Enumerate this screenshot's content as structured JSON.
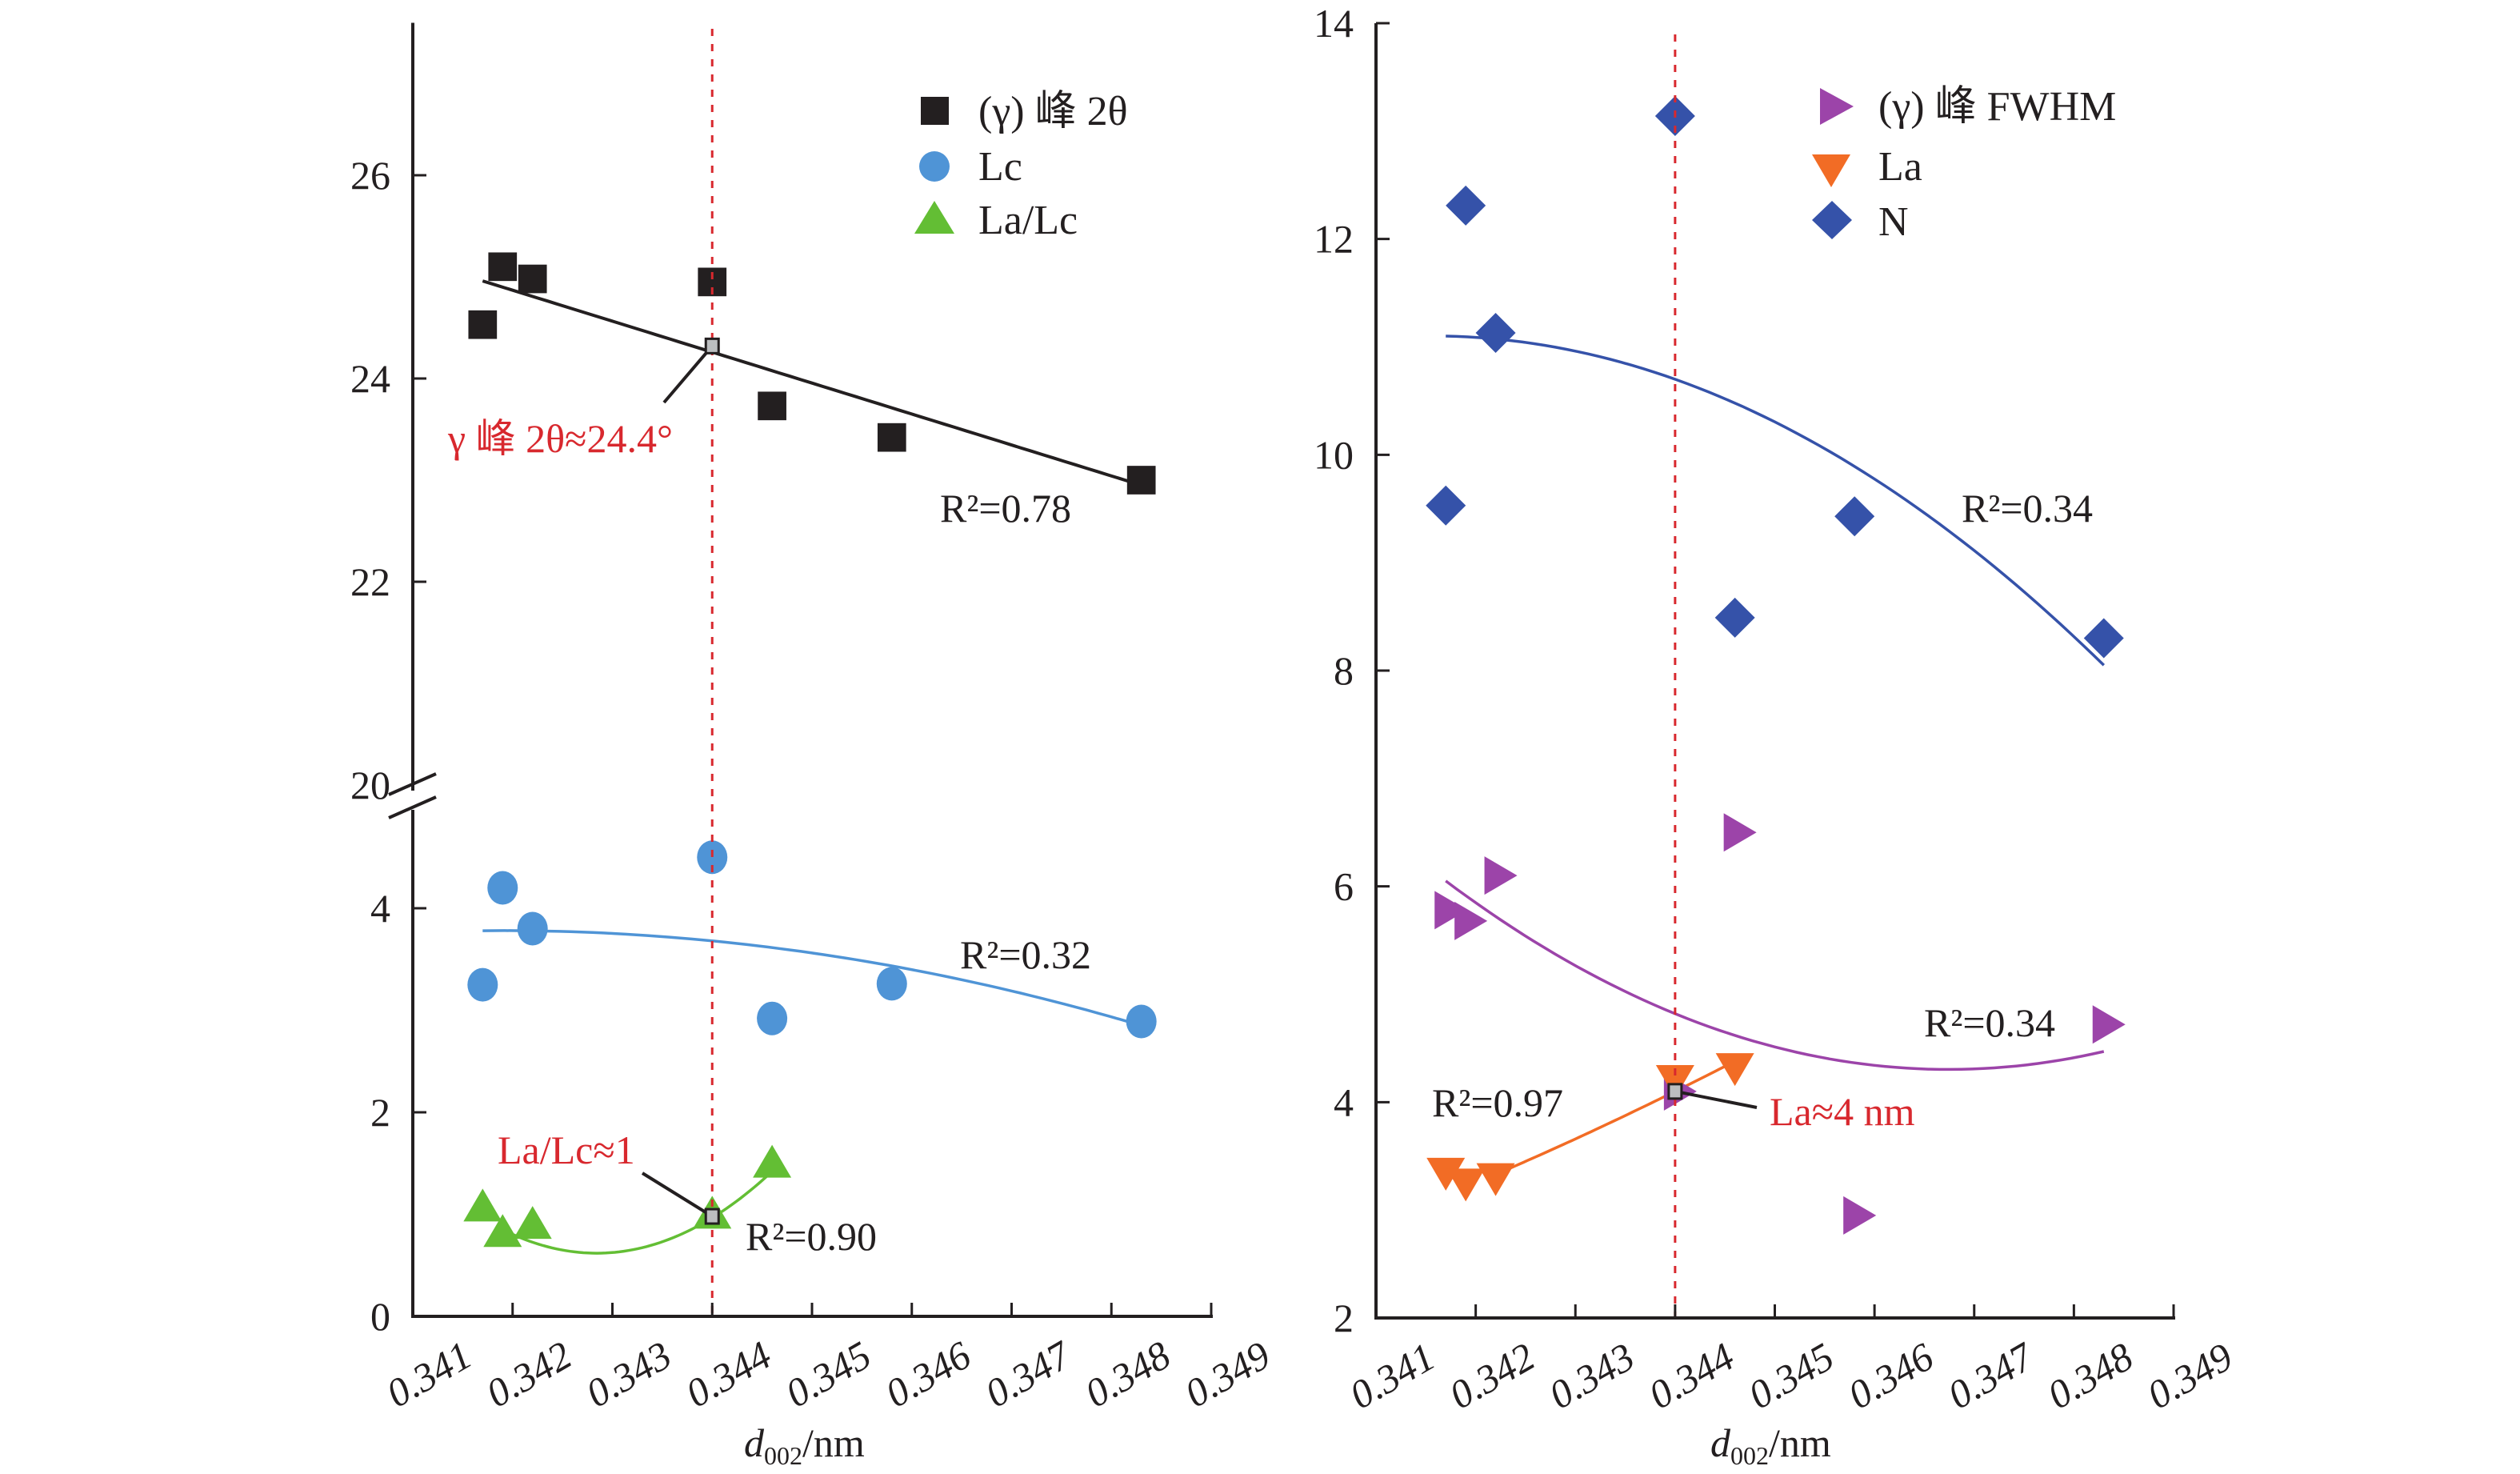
{
  "chart_data": [
    {
      "id": "left",
      "type": "scatter",
      "title": "",
      "xlabel": "d002/nm",
      "xlabel_main": "d",
      "xlabel_sub": "002",
      "xlabel_unit": "/nm",
      "xlim": [
        0.341,
        0.349
      ],
      "xticks": [
        0.341,
        0.342,
        0.343,
        0.344,
        0.345,
        0.346,
        0.347,
        0.348,
        0.349
      ],
      "xtick_labels": [
        "0.341",
        "0.342",
        "0.343",
        "0.344",
        "0.345",
        "0.346",
        "0.347",
        "0.348",
        "0.349"
      ],
      "y_axis_broken": true,
      "ylim_lower": [
        0,
        4.9
      ],
      "ylim_upper": [
        20,
        27.5
      ],
      "yticks_lower": [
        0,
        2,
        4
      ],
      "ytick_labels_lower": [
        "0",
        "2",
        "4"
      ],
      "yticks_upper": [
        20,
        22,
        24,
        26
      ],
      "ytick_labels_upper": [
        "20",
        "22",
        "24",
        "26"
      ],
      "grid": false,
      "legend_position": "top-right",
      "reference_line_x": 0.344,
      "series": [
        {
          "name": "(γ) 峰 2θ",
          "marker": "square",
          "color": "#231f20",
          "segment": "upper",
          "x": [
            0.3417,
            0.3419,
            0.3422,
            0.344,
            0.3446,
            0.3458,
            0.3483
          ],
          "y": [
            24.53,
            25.1,
            24.98,
            24.95,
            23.73,
            23.42,
            23.0
          ],
          "fit": {
            "type": "linear",
            "color": "#231f20",
            "points": [
              [
                0.3417,
                24.96
              ],
              [
                0.3483,
                22.95
              ]
            ],
            "r2_label": "R²=0.78",
            "r2_value": 0.78
          }
        },
        {
          "name": "Lc",
          "marker": "circle",
          "color": "#4f94d6",
          "segment": "lower",
          "x": [
            0.3417,
            0.3419,
            0.3422,
            0.344,
            0.3446,
            0.3458,
            0.3483
          ],
          "y": [
            3.25,
            4.2,
            3.8,
            4.5,
            2.92,
            3.26,
            2.89
          ],
          "fit": {
            "type": "quadratic",
            "color": "#4f94d6",
            "points": [
              [
                0.3417,
                3.78
              ],
              [
                0.344,
                3.68
              ],
              [
                0.3483,
                2.85
              ]
            ],
            "r2_label": "R²=0.32",
            "r2_value": 0.32
          }
        },
        {
          "name": "La/Lc",
          "marker": "triangle-up",
          "color": "#63be34",
          "segment": "lower",
          "x": [
            0.3417,
            0.3419,
            0.3422,
            0.344,
            0.3446
          ],
          "y": [
            1.04,
            0.79,
            0.87,
            0.97,
            1.47
          ],
          "fit": {
            "type": "quadratic",
            "color": "#63be34",
            "points": [
              [
                0.3419,
                0.85
              ],
              [
                0.3429,
                0.62
              ],
              [
                0.3446,
                1.42
              ]
            ],
            "r2_label": "R²=0.90",
            "r2_value": 0.9
          }
        }
      ],
      "annotations": [
        {
          "text": "γ 峰 2θ≈24.4°",
          "color": "#d8282e",
          "point": [
            0.344,
            24.32
          ],
          "segment": "upper"
        },
        {
          "text": "La/Lc≈1",
          "color": "#d8282e",
          "point": [
            0.344,
            0.98
          ],
          "segment": "lower"
        }
      ]
    },
    {
      "id": "right",
      "type": "scatter",
      "title": "",
      "xlabel": "d002/nm",
      "xlabel_main": "d",
      "xlabel_sub": "002",
      "xlabel_unit": "/nm",
      "xlim": [
        0.341,
        0.349
      ],
      "xticks": [
        0.341,
        0.342,
        0.343,
        0.344,
        0.345,
        0.346,
        0.347,
        0.348,
        0.349
      ],
      "xtick_labels": [
        "0.341",
        "0.342",
        "0.343",
        "0.344",
        "0.345",
        "0.346",
        "0.347",
        "0.348",
        "0.349"
      ],
      "ylim": [
        2,
        14
      ],
      "yticks": [
        2,
        4,
        6,
        8,
        10,
        12,
        14
      ],
      "ytick_labels": [
        "2",
        "4",
        "6",
        "8",
        "10",
        "12",
        "14"
      ],
      "grid": false,
      "legend_position": "top-right",
      "reference_line_x": 0.344,
      "series": [
        {
          "name": "(γ) 峰 FWHM",
          "marker": "triangle-right",
          "color": "#9c44a9",
          "x": [
            0.3417,
            0.3419,
            0.3422,
            0.344,
            0.3446,
            0.3458,
            0.3483
          ],
          "y": [
            5.78,
            5.68,
            6.1,
            4.1,
            6.5,
            2.95,
            4.72
          ],
          "fit": {
            "type": "quadratic",
            "color": "#9c44a9",
            "points": [
              [
                0.3417,
                6.05
              ],
              [
                0.344,
                4.82
              ],
              [
                0.3483,
                4.47
              ]
            ],
            "r2_label": "R²=0.34",
            "r2_value": 0.34
          }
        },
        {
          "name": "La",
          "marker": "triangle-down",
          "color": "#f26c25",
          "x": [
            0.3417,
            0.3419,
            0.3422,
            0.344,
            0.3446
          ],
          "y": [
            3.38,
            3.28,
            3.33,
            4.24,
            4.35
          ],
          "fit": {
            "type": "quadratic",
            "color": "#f26c25",
            "points": [
              [
                0.3422,
                3.33
              ],
              [
                0.344,
                4.1
              ],
              [
                0.3446,
                4.38
              ]
            ],
            "r2_label": "R²=0.97",
            "r2_value": 0.97
          }
        },
        {
          "name": "N",
          "marker": "diamond",
          "color": "#3552a9",
          "x": [
            0.3417,
            0.3419,
            0.3422,
            0.344,
            0.3446,
            0.3458,
            0.3483
          ],
          "y": [
            9.53,
            12.31,
            11.13,
            13.14,
            8.49,
            9.43,
            8.3
          ],
          "fit": {
            "type": "quadratic",
            "color": "#3552a9",
            "points": [
              [
                0.3417,
                11.1
              ],
              [
                0.344,
                10.7
              ],
              [
                0.3483,
                8.05
              ]
            ],
            "r2_label": "R²=0.34",
            "r2_value": 0.34
          }
        }
      ],
      "annotations": [
        {
          "text": "La≈4 nm",
          "color": "#d8282e",
          "point": [
            0.344,
            4.1
          ]
        }
      ]
    }
  ]
}
